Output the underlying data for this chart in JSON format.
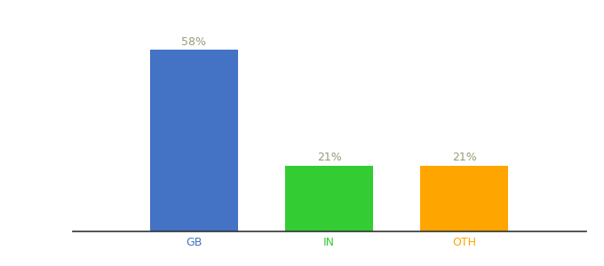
{
  "categories": [
    "GB",
    "IN",
    "OTH"
  ],
  "values": [
    58,
    21,
    21
  ],
  "bar_colors": [
    "#4472C4",
    "#33CC33",
    "#FFA500"
  ],
  "label_colors": [
    "#4472C4",
    "#33CC33",
    "#FFA500"
  ],
  "value_label_color": "#999977",
  "ylim": [
    0,
    68
  ],
  "bar_width": 0.65,
  "background_color": "#ffffff",
  "label_fontsize": 9,
  "value_fontsize": 9,
  "spine_color": "#333333"
}
